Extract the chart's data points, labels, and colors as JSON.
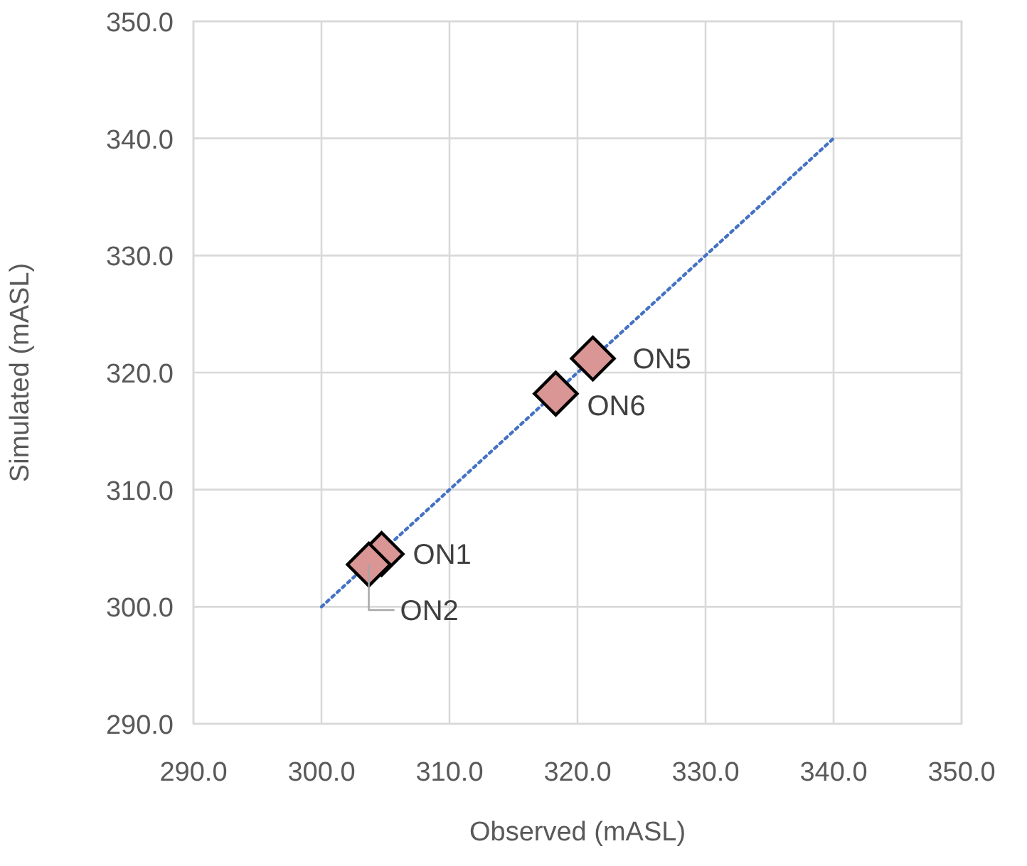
{
  "chart_data": {
    "type": "scatter",
    "xlabel": "Observed (mASL)",
    "ylabel": "Simulated (mASL)",
    "xlim": [
      290,
      350
    ],
    "ylim": [
      290,
      350
    ],
    "xticks": [
      {
        "value": 290,
        "label": "290.0"
      },
      {
        "value": 300,
        "label": "300.0"
      },
      {
        "value": 310,
        "label": "310.0"
      },
      {
        "value": 320,
        "label": "320.0"
      },
      {
        "value": 330,
        "label": "330.0"
      },
      {
        "value": 340,
        "label": "340.0"
      },
      {
        "value": 350,
        "label": "350.0"
      }
    ],
    "yticks": [
      {
        "value": 290,
        "label": "290.0"
      },
      {
        "value": 300,
        "label": "300.0"
      },
      {
        "value": 310,
        "label": "310.0"
      },
      {
        "value": 320,
        "label": "320.0"
      },
      {
        "value": 330,
        "label": "330.0"
      },
      {
        "value": 340,
        "label": "340.0"
      },
      {
        "value": 350,
        "label": "350.0"
      }
    ],
    "grid": true,
    "series": [
      {
        "type": "line",
        "color": "#4472c4",
        "x": [
          300,
          340
        ],
        "values": [
          300,
          340
        ],
        "line_style": "dotted",
        "marker": "none"
      },
      {
        "color": "#d99694",
        "x": [
          304.7,
          303.7,
          321.2,
          318.3
        ],
        "values": [
          304.5,
          303.6,
          321.2,
          318.2
        ],
        "marker": "diamond"
      }
    ],
    "annotations": [
      {
        "text": "ON1",
        "x": 304.7,
        "y": 304.5
      },
      {
        "text": "ON2",
        "x": 303.7,
        "y": 303.6
      },
      {
        "text": "ON5",
        "x": 321.2,
        "y": 321.2
      },
      {
        "text": "ON6",
        "x": 318.3,
        "y": 318.2
      }
    ]
  }
}
